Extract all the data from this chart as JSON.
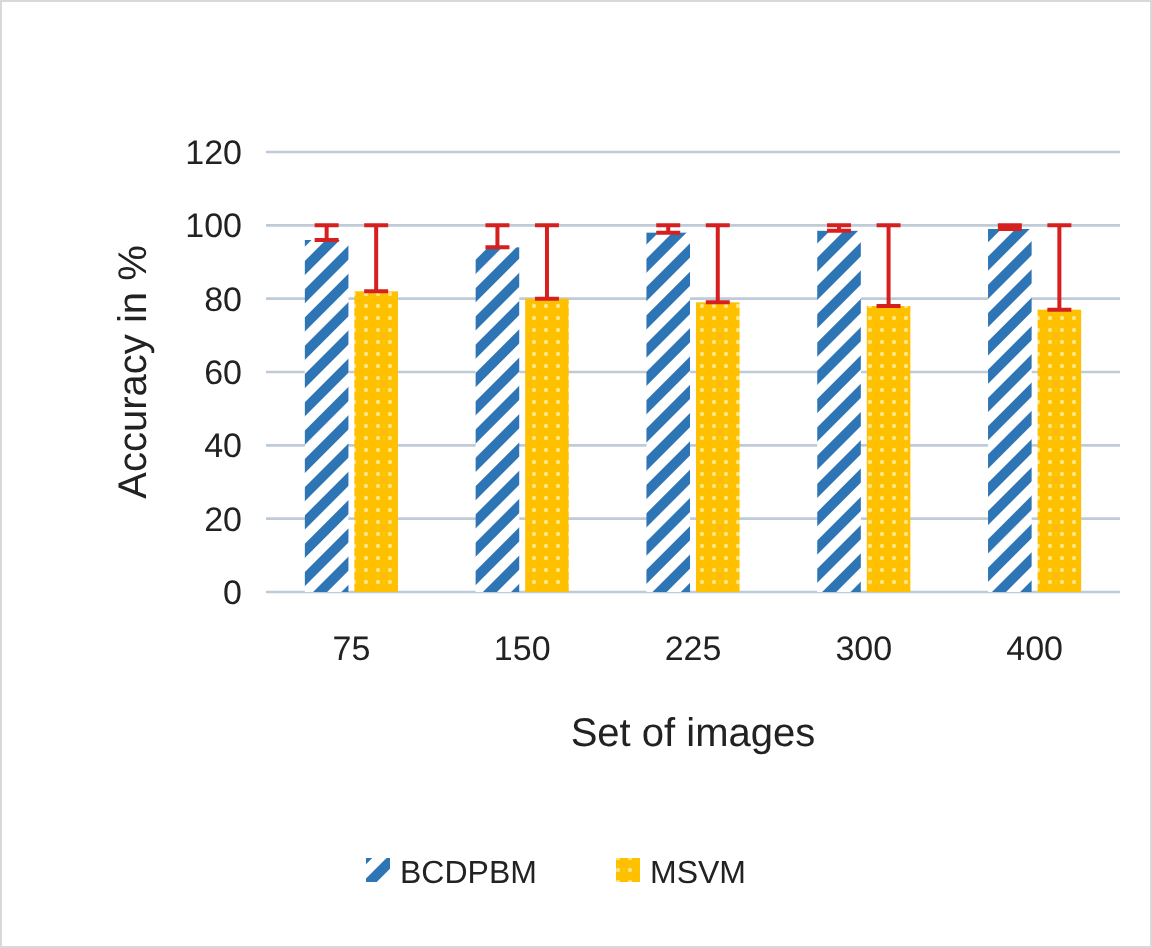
{
  "chart_data": {
    "type": "bar",
    "xlabel": "Set of images",
    "ylabel": "Accuracy in %",
    "categories": [
      "75",
      "150",
      "225",
      "300",
      "400"
    ],
    "series": [
      {
        "name": "BCDPBM",
        "color": "#2e75b6",
        "values": [
          96,
          94,
          98,
          98.5,
          99
        ],
        "errors": [
          [
            96,
            100
          ],
          [
            94,
            100
          ],
          [
            98,
            100
          ],
          [
            98.5,
            100
          ],
          [
            99,
            100
          ]
        ]
      },
      {
        "name": "MSVM",
        "color": "#ffc000",
        "values": [
          82,
          80,
          79,
          78,
          77
        ],
        "errors": [
          [
            82,
            100
          ],
          [
            80,
            100
          ],
          [
            79,
            100
          ],
          [
            78,
            100
          ],
          [
            77,
            100
          ]
        ]
      }
    ],
    "ylim": [
      0,
      120
    ],
    "yticks": [
      0,
      20,
      40,
      60,
      80,
      100,
      120
    ],
    "grid": "y",
    "legend": "bottom"
  }
}
